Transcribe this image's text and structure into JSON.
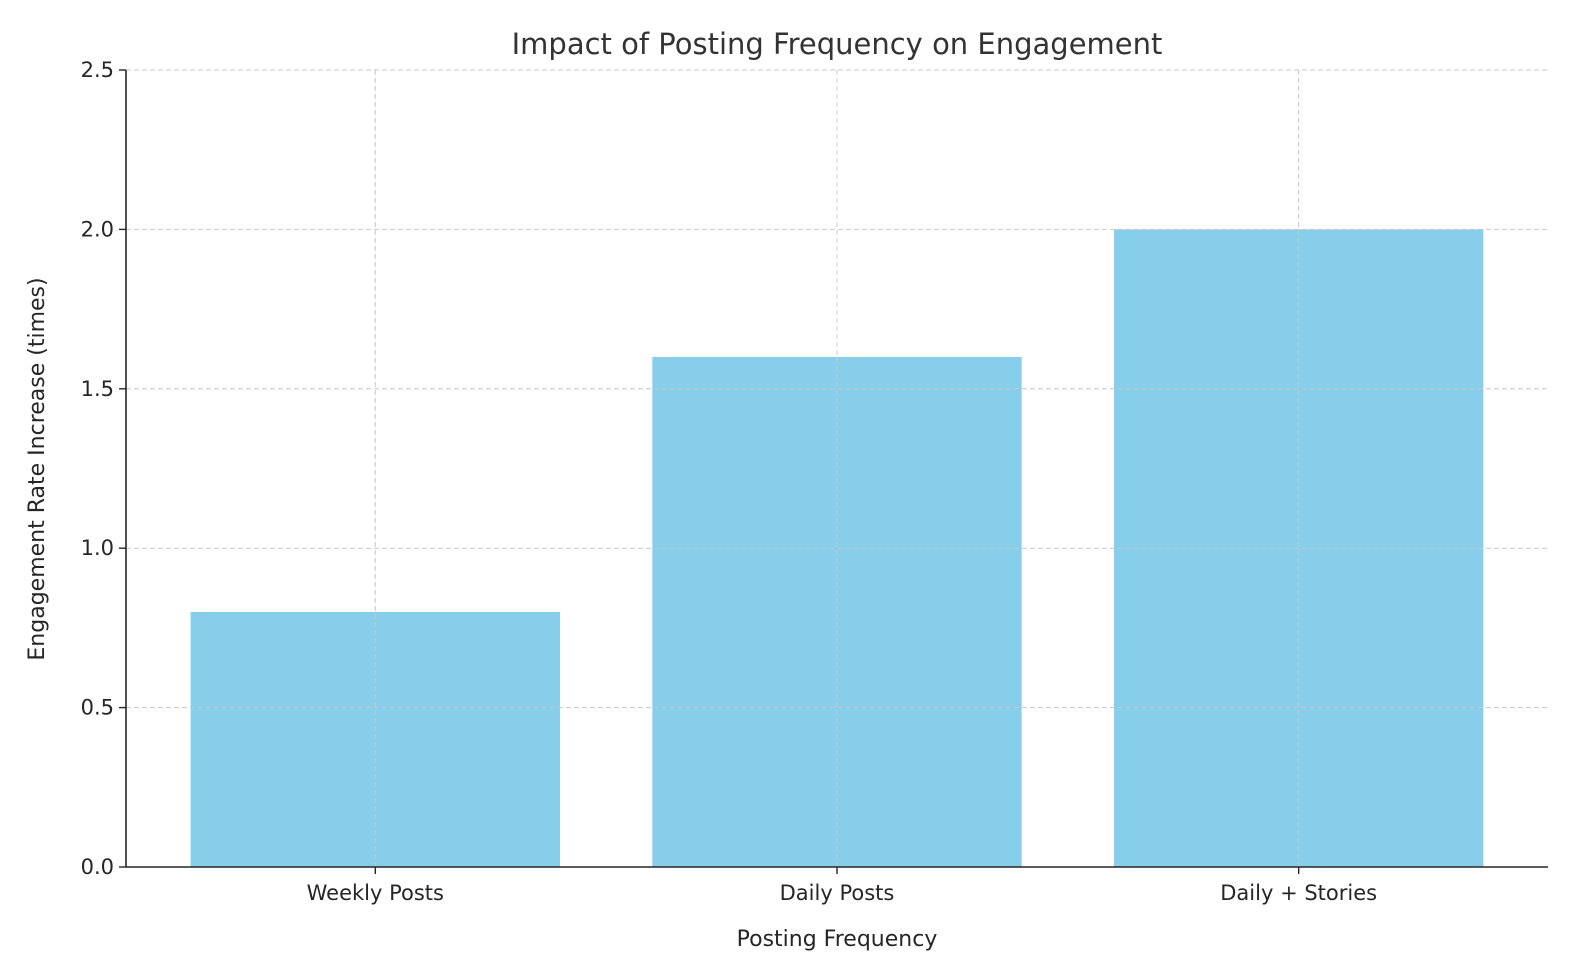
{
  "chart_data": {
    "type": "bar",
    "title": "Impact of Posting Frequency on Engagement",
    "xlabel": "Posting Frequency",
    "ylabel": "Engagement Rate Increase (times)",
    "categories": [
      "Weekly Posts",
      "Daily Posts",
      "Daily + Stories"
    ],
    "values": [
      0.8,
      1.6,
      2.0
    ],
    "ylim": [
      0,
      2.5
    ],
    "yticks": [
      "0.0",
      "0.5",
      "1.0",
      "1.5",
      "2.0",
      "2.5"
    ],
    "grid": true,
    "bar_color": "#87CEEB"
  }
}
